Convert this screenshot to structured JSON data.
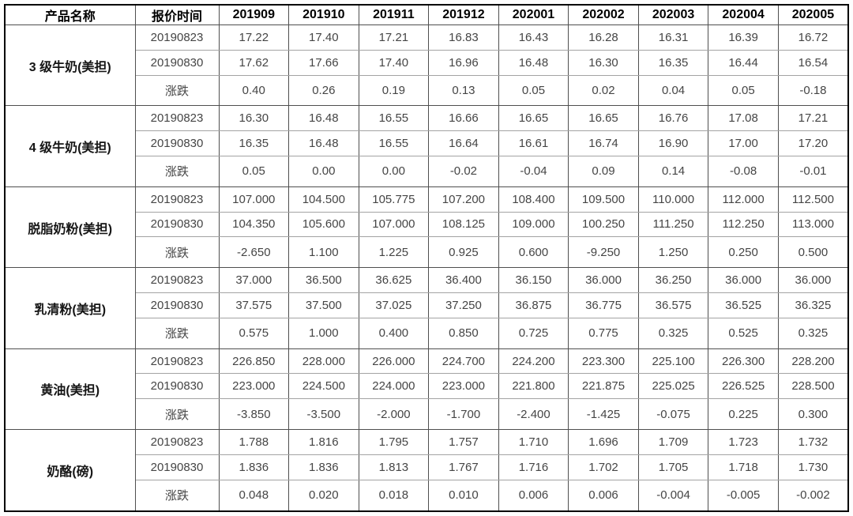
{
  "chart_data": {
    "type": "table",
    "title": "",
    "columns": [
      "产品名称",
      "报价时间",
      "201909",
      "201910",
      "201911",
      "201912",
      "202001",
      "202002",
      "202003",
      "202004",
      "202005"
    ],
    "row_labels": [
      "20190823",
      "20190830",
      "涨跌"
    ],
    "products": [
      {
        "name": "3 级牛奶(美担)",
        "rows": [
          [
            "17.22",
            "17.40",
            "17.21",
            "16.83",
            "16.43",
            "16.28",
            "16.31",
            "16.39",
            "16.72"
          ],
          [
            "17.62",
            "17.66",
            "17.40",
            "16.96",
            "16.48",
            "16.30",
            "16.35",
            "16.44",
            "16.54"
          ],
          [
            "0.40",
            "0.26",
            "0.19",
            "0.13",
            "0.05",
            "0.02",
            "0.04",
            "0.05",
            "-0.18"
          ]
        ]
      },
      {
        "name": "4 级牛奶(美担)",
        "rows": [
          [
            "16.30",
            "16.48",
            "16.55",
            "16.66",
            "16.65",
            "16.65",
            "16.76",
            "17.08",
            "17.21"
          ],
          [
            "16.35",
            "16.48",
            "16.55",
            "16.64",
            "16.61",
            "16.74",
            "16.90",
            "17.00",
            "17.20"
          ],
          [
            "0.05",
            "0.00",
            "0.00",
            "-0.02",
            "-0.04",
            "0.09",
            "0.14",
            "-0.08",
            "-0.01"
          ]
        ]
      },
      {
        "name": "脱脂奶粉(美担)",
        "rows": [
          [
            "107.000",
            "104.500",
            "105.775",
            "107.200",
            "108.400",
            "109.500",
            "110.000",
            "112.000",
            "112.500"
          ],
          [
            "104.350",
            "105.600",
            "107.000",
            "108.125",
            "109.000",
            "100.250",
            "111.250",
            "112.250",
            "113.000"
          ],
          [
            "-2.650",
            "1.100",
            "1.225",
            "0.925",
            "0.600",
            "-9.250",
            "1.250",
            "0.250",
            "0.500"
          ]
        ]
      },
      {
        "name": "乳清粉(美担)",
        "rows": [
          [
            "37.000",
            "36.500",
            "36.625",
            "36.400",
            "36.150",
            "36.000",
            "36.250",
            "36.000",
            "36.000"
          ],
          [
            "37.575",
            "37.500",
            "37.025",
            "37.250",
            "36.875",
            "36.775",
            "36.575",
            "36.525",
            "36.325"
          ],
          [
            "0.575",
            "1.000",
            "0.400",
            "0.850",
            "0.725",
            "0.775",
            "0.325",
            "0.525",
            "0.325"
          ]
        ]
      },
      {
        "name": "黄油(美担)",
        "rows": [
          [
            "226.850",
            "228.000",
            "226.000",
            "224.700",
            "224.200",
            "223.300",
            "225.100",
            "226.300",
            "228.200"
          ],
          [
            "223.000",
            "224.500",
            "224.000",
            "223.000",
            "221.800",
            "221.875",
            "225.025",
            "226.525",
            "228.500"
          ],
          [
            "-3.850",
            "-3.500",
            "-2.000",
            "-1.700",
            "-2.400",
            "-1.425",
            "-0.075",
            "0.225",
            "0.300"
          ]
        ]
      },
      {
        "name": "奶酪(磅)",
        "rows": [
          [
            "1.788",
            "1.816",
            "1.795",
            "1.757",
            "1.710",
            "1.696",
            "1.709",
            "1.723",
            "1.732"
          ],
          [
            "1.836",
            "1.836",
            "1.813",
            "1.767",
            "1.716",
            "1.702",
            "1.705",
            "1.718",
            "1.730"
          ],
          [
            "0.048",
            "0.020",
            "0.018",
            "0.010",
            "0.006",
            "0.006",
            "-0.004",
            "-0.005",
            "-0.002"
          ]
        ]
      }
    ],
    "layout_hints": {
      "grid": "on",
      "header_style": "bold",
      "group_row_count": 3
    }
  }
}
